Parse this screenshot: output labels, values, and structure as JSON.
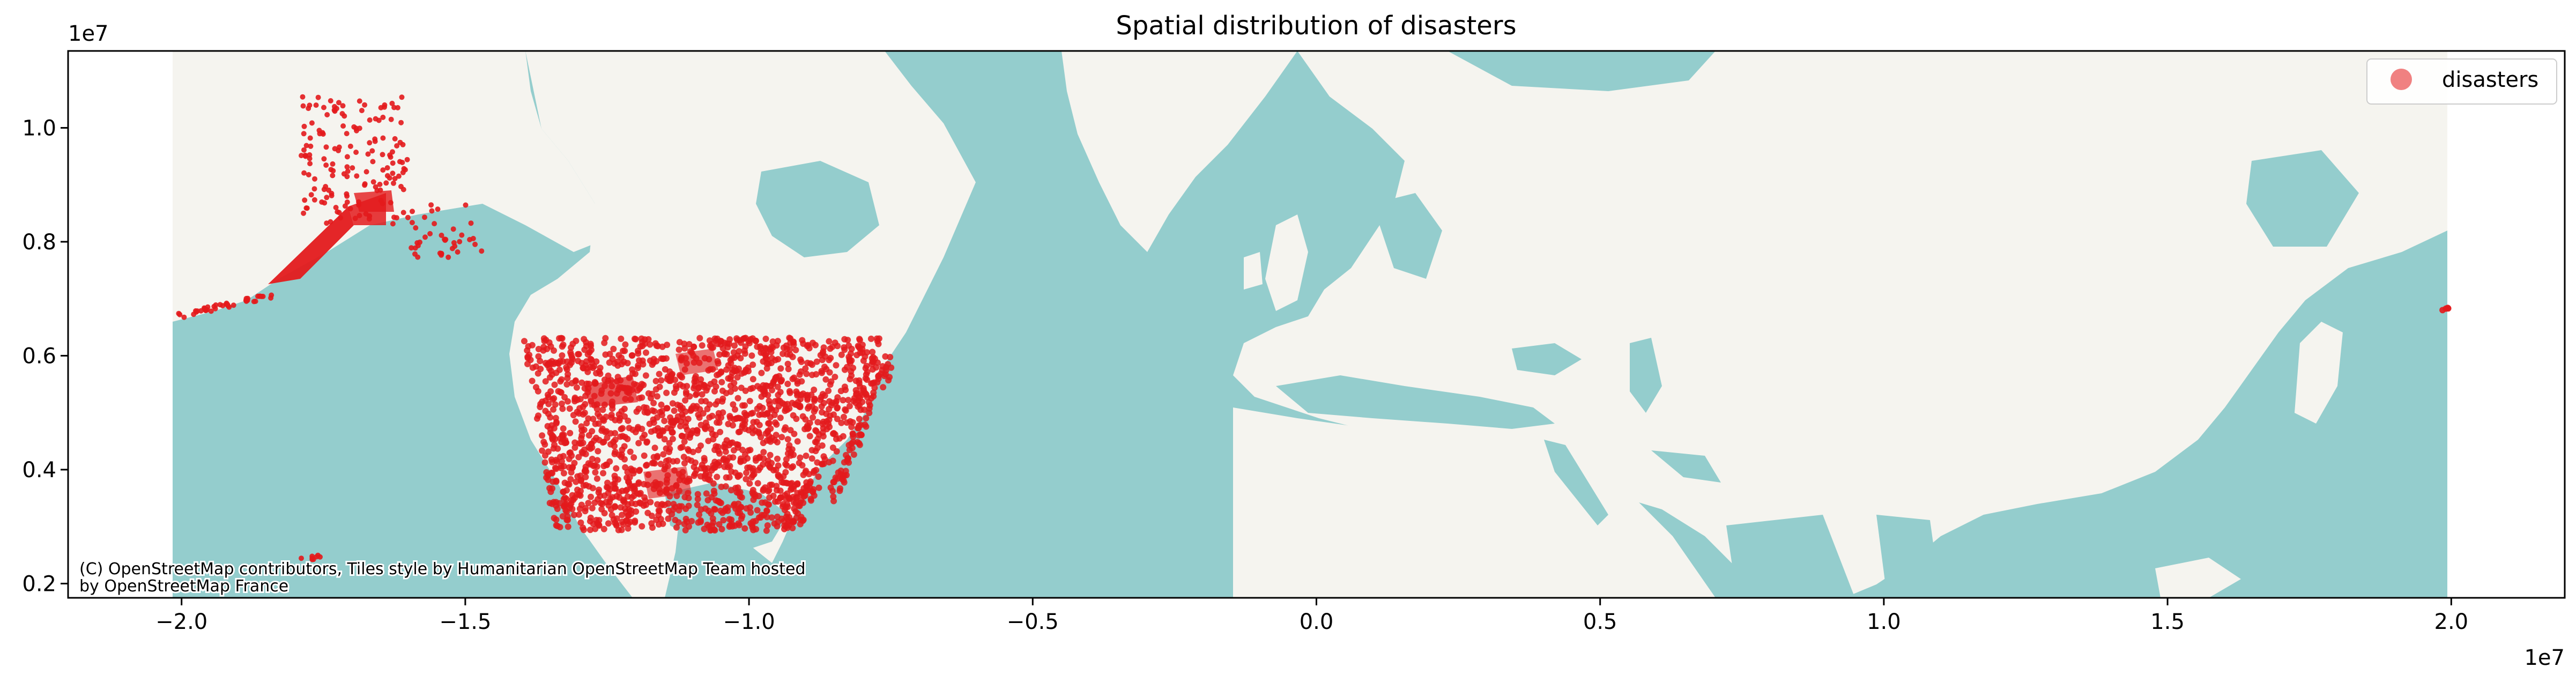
{
  "chart_data": {
    "type": "map",
    "title": "Spatial distribution of disasters",
    "xlabel": "",
    "ylabel": "",
    "xlim": [
      -22000000,
      22000000
    ],
    "ylim": [
      1750000,
      11350000
    ],
    "x_ticks": [
      -20000000,
      -15000000,
      -10000000,
      -5000000,
      0,
      5000000,
      10000000,
      15000000,
      20000000
    ],
    "x_tick_labels": [
      "−2.0",
      "−1.5",
      "−1.0",
      "−0.5",
      "0.0",
      "0.5",
      "1.0",
      "1.5",
      "2.0"
    ],
    "y_ticks": [
      2000000,
      4000000,
      6000000,
      8000000,
      10000000
    ],
    "y_tick_labels": [
      "0.2",
      "0.4",
      "0.6",
      "0.8",
      "1.0"
    ],
    "x_offset_label": "1e7",
    "y_offset_label": "1e7",
    "basemap_extent_x": [
      -20037508,
      20037508
    ],
    "legend": {
      "entries": [
        "disasters"
      ],
      "placement": "top-right"
    },
    "attribution_lines": [
      "(C) OpenStreetMap contributors, Tiles style by Humanitarian OpenStreetMap Team hosted",
      "by OpenStreetMap France"
    ],
    "grid": false,
    "colors": {
      "marker": "#e31a1c",
      "water": "#94cdcd",
      "land": "#f5f4ef"
    }
  }
}
